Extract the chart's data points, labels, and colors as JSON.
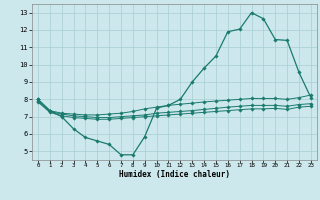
{
  "title": "",
  "xlabel": "Humidex (Indice chaleur)",
  "bg_color": "#cce8ec",
  "line_color": "#1a7a6e",
  "grid_color": "#a8cdd2",
  "xlim": [
    -0.5,
    23.5
  ],
  "ylim": [
    4.5,
    13.5
  ],
  "yticks": [
    5,
    6,
    7,
    8,
    9,
    10,
    11,
    12,
    13
  ],
  "xticks": [
    0,
    1,
    2,
    3,
    4,
    5,
    6,
    7,
    8,
    9,
    10,
    11,
    12,
    13,
    14,
    15,
    16,
    17,
    18,
    19,
    20,
    21,
    22,
    23
  ],
  "line1_x": [
    0,
    1,
    2,
    3,
    4,
    5,
    6,
    7,
    8,
    9,
    10,
    11,
    12,
    13,
    14,
    15,
    16,
    17,
    18,
    19,
    20,
    21,
    22,
    23
  ],
  "line1_y": [
    8.0,
    7.35,
    7.0,
    6.3,
    5.8,
    5.6,
    5.4,
    4.8,
    4.8,
    5.85,
    7.5,
    7.65,
    8.0,
    9.0,
    9.8,
    10.5,
    11.9,
    12.05,
    13.0,
    12.65,
    11.45,
    11.4,
    9.55,
    8.1
  ],
  "line2_x": [
    0,
    1,
    2,
    3,
    4,
    5,
    6,
    7,
    8,
    9,
    10,
    11,
    12,
    13,
    14,
    15,
    16,
    17,
    18,
    19,
    20,
    21,
    22,
    23
  ],
  "line2_y": [
    8.0,
    7.35,
    7.2,
    7.15,
    7.1,
    7.1,
    7.15,
    7.2,
    7.3,
    7.45,
    7.55,
    7.65,
    7.72,
    7.78,
    7.85,
    7.9,
    7.95,
    8.0,
    8.05,
    8.05,
    8.05,
    8.0,
    8.1,
    8.25
  ],
  "line3_x": [
    0,
    1,
    2,
    3,
    4,
    5,
    6,
    7,
    8,
    9,
    10,
    11,
    12,
    13,
    14,
    15,
    16,
    17,
    18,
    19,
    20,
    21,
    22,
    23
  ],
  "line3_y": [
    7.9,
    7.3,
    7.15,
    7.05,
    7.0,
    6.95,
    6.95,
    7.0,
    7.05,
    7.1,
    7.2,
    7.25,
    7.3,
    7.35,
    7.42,
    7.48,
    7.55,
    7.6,
    7.65,
    7.65,
    7.65,
    7.6,
    7.7,
    7.75
  ],
  "line4_x": [
    0,
    1,
    2,
    3,
    4,
    5,
    6,
    7,
    8,
    9,
    10,
    11,
    12,
    13,
    14,
    15,
    16,
    17,
    18,
    19,
    20,
    21,
    22,
    23
  ],
  "line4_y": [
    7.85,
    7.25,
    7.05,
    6.95,
    6.9,
    6.85,
    6.85,
    6.9,
    6.95,
    7.0,
    7.05,
    7.1,
    7.15,
    7.2,
    7.25,
    7.3,
    7.35,
    7.4,
    7.45,
    7.45,
    7.48,
    7.42,
    7.55,
    7.6
  ]
}
